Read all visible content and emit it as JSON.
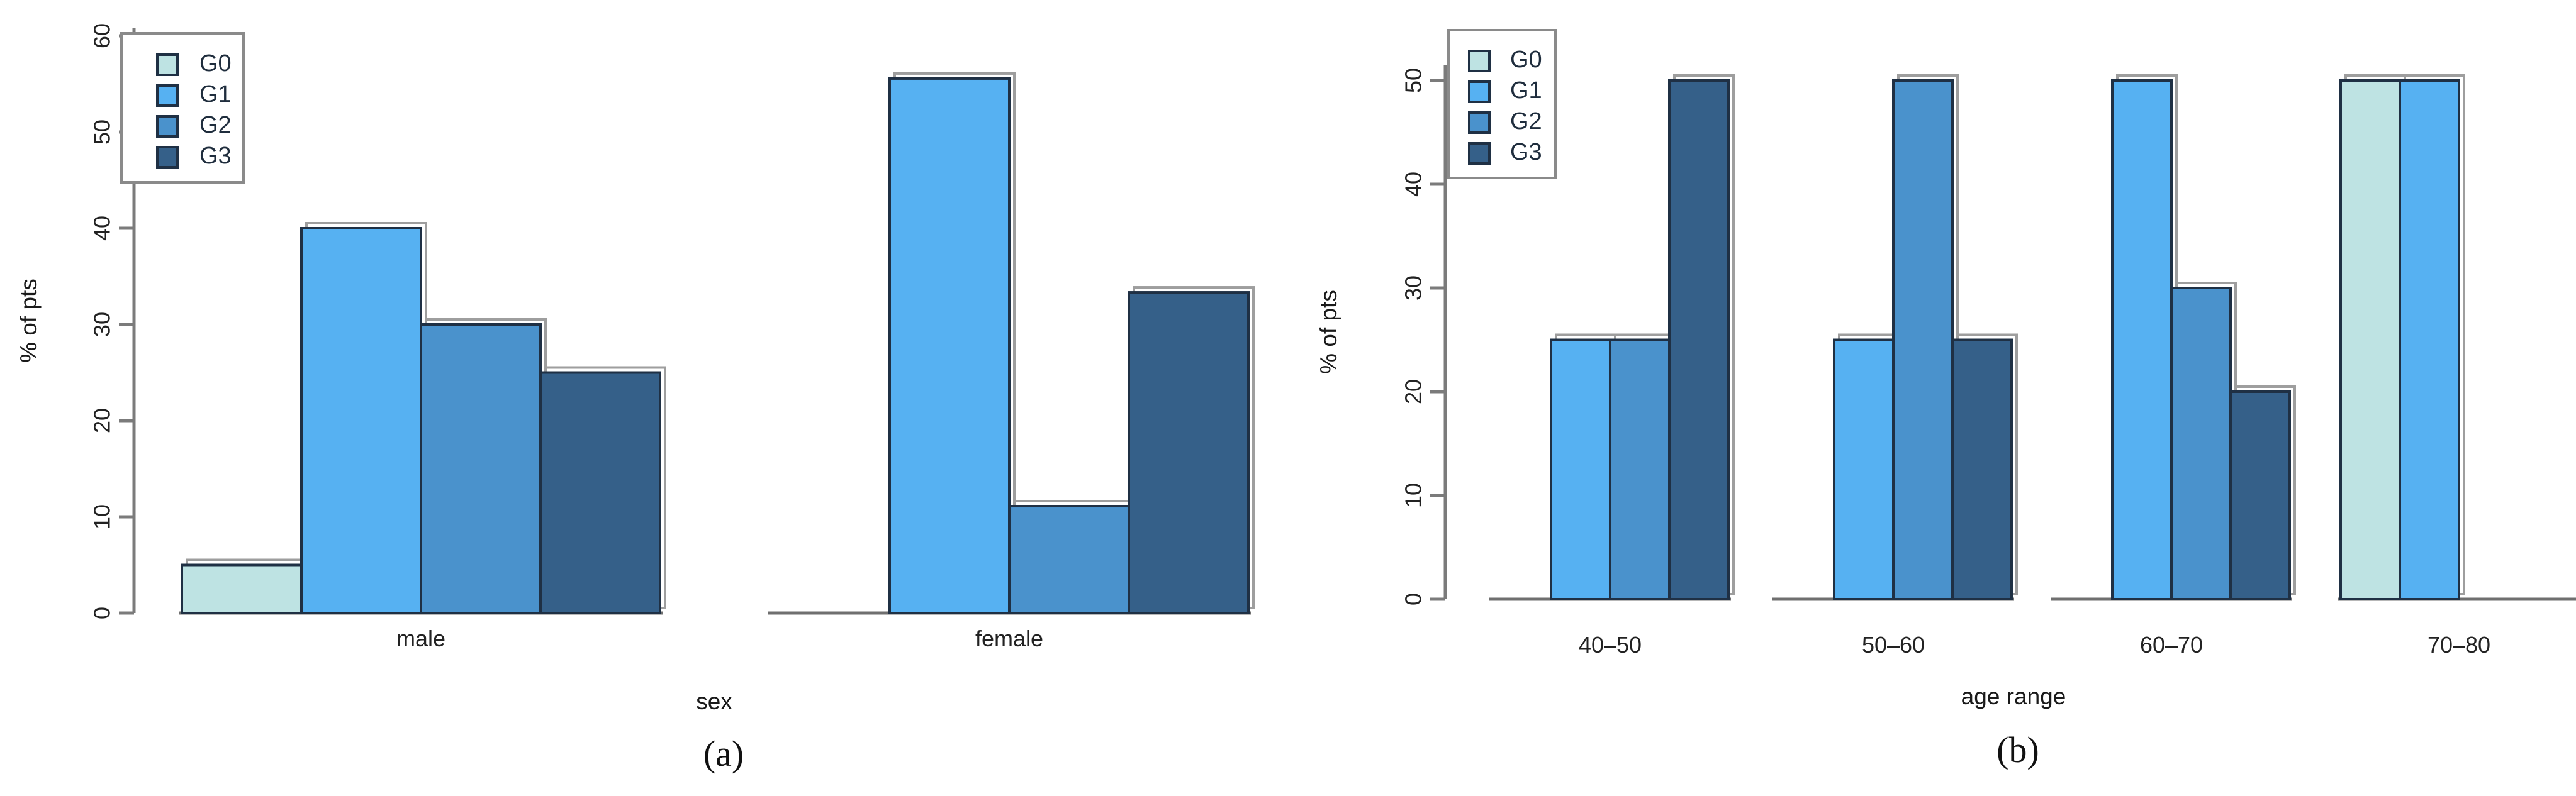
{
  "figure": {
    "background": "#ffffff",
    "caption_a": "(a)",
    "caption_b": "(b)"
  },
  "palette": {
    "G0": "#bee3e3",
    "G1": "#56b1f2",
    "G2": "#4a92cc",
    "G3": "#356089",
    "bar_border": "#1f3044",
    "axis_gray": "#7b7b7b"
  },
  "chart_data": [
    {
      "type": "bar",
      "panel": "a",
      "caption": "(a)",
      "title": "",
      "categories": [
        "male",
        "female"
      ],
      "series": [
        {
          "name": "G0",
          "color": "#bee3e3",
          "values": [
            5,
            0
          ]
        },
        {
          "name": "G1",
          "color": "#56b1f2",
          "values": [
            40,
            55.56
          ]
        },
        {
          "name": "G2",
          "color": "#4a92cc",
          "values": [
            30,
            11.11
          ]
        },
        {
          "name": "G3",
          "color": "#356089",
          "values": [
            25,
            33.33
          ]
        }
      ],
      "x_axis": {
        "label": "sex"
      },
      "y_axis": {
        "label": "% of pts",
        "ticks": [
          "0",
          "10",
          "20",
          "30",
          "40",
          "50",
          "60"
        ],
        "min": 0,
        "max": 60
      },
      "grid": "off",
      "legend": {
        "position": "top-left",
        "labels": [
          "G0",
          "G1",
          "G2",
          "G3"
        ]
      }
    },
    {
      "type": "bar",
      "panel": "b",
      "caption": "(b)",
      "title": "",
      "categories": [
        "40–50",
        "50–60",
        "60–70",
        "70–80"
      ],
      "series": [
        {
          "name": "G0",
          "color": "#bee3e3",
          "values": [
            0,
            0,
            0,
            50
          ]
        },
        {
          "name": "G1",
          "color": "#56b1f2",
          "values": [
            25,
            25,
            50,
            50
          ]
        },
        {
          "name": "G2",
          "color": "#4a92cc",
          "values": [
            25,
            50,
            30,
            0
          ]
        },
        {
          "name": "G3",
          "color": "#356089",
          "values": [
            50,
            25,
            20,
            0
          ]
        }
      ],
      "x_axis": {
        "label": "age range"
      },
      "y_axis": {
        "label": "% of pts",
        "ticks": [
          "0",
          "10",
          "20",
          "30",
          "40",
          "50"
        ],
        "min": 0,
        "max": 50
      },
      "grid": "off",
      "legend": {
        "position": "top-left",
        "labels": [
          "G0",
          "G1",
          "G2",
          "G3"
        ]
      }
    }
  ]
}
